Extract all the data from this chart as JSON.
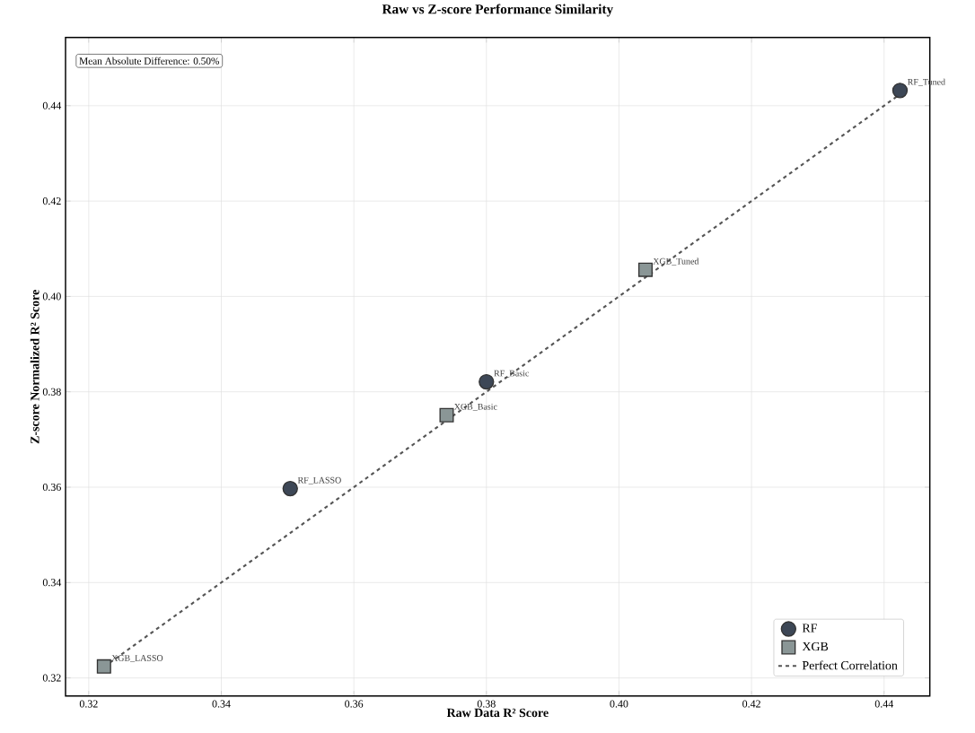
{
  "chart_data": {
    "type": "scatter",
    "title": "Raw vs Z-score Performance Similarity",
    "xlabel": "Raw Data R² Score",
    "ylabel": "Z-score Normalized R² Score",
    "series": [
      {
        "name": "RF",
        "color": "#3d4756",
        "marker": "circle",
        "x": [
          0.4424,
          0.38,
          0.3504
        ],
        "values": [
          0.4432,
          0.3821,
          0.3597
        ]
      },
      {
        "name": "XGB",
        "color": "#8a9696",
        "marker": "square",
        "x": [
          0.404,
          0.374,
          0.3223
        ],
        "values": [
          0.4056,
          0.3751,
          0.3224
        ]
      },
      {
        "name": "Perfect Correlation",
        "type": "line",
        "color": "#555555",
        "line_style": "dashed",
        "marker": "none",
        "x": [
          0.3223,
          0.4424
        ],
        "values": [
          0.3223,
          0.4424
        ]
      }
    ],
    "annotations": [
      "Mean Absolute Difference: 0.50%",
      {
        "text": "RF_Tuned",
        "x": 0.4424,
        "y": 0.4432
      },
      {
        "text": "XGB_Tuned",
        "x": 0.404,
        "y": 0.4056
      },
      {
        "text": "RF_Basic",
        "x": 0.38,
        "y": 0.3821
      },
      {
        "text": "XGB_Basic",
        "x": 0.374,
        "y": 0.3751
      },
      {
        "text": "RF_LASSO",
        "x": 0.3504,
        "y": 0.3597
      },
      {
        "text": "XGB_LASSO",
        "x": 0.3223,
        "y": 0.3224
      }
    ],
    "xlim": [
      0.3165,
      0.4469
    ],
    "ylim": [
      0.3162,
      0.4543
    ],
    "xticks": [
      0.32,
      0.34,
      0.36,
      0.38,
      {
        "value": 0.4,
        "label": "0.40"
      },
      0.42,
      0.44
    ],
    "yticks": [
      0.32,
      0.34,
      0.36,
      0.38,
      {
        "value": 0.4,
        "label": "0.40"
      },
      0.42,
      0.44
    ],
    "grid": true,
    "legend": "bottom right"
  }
}
